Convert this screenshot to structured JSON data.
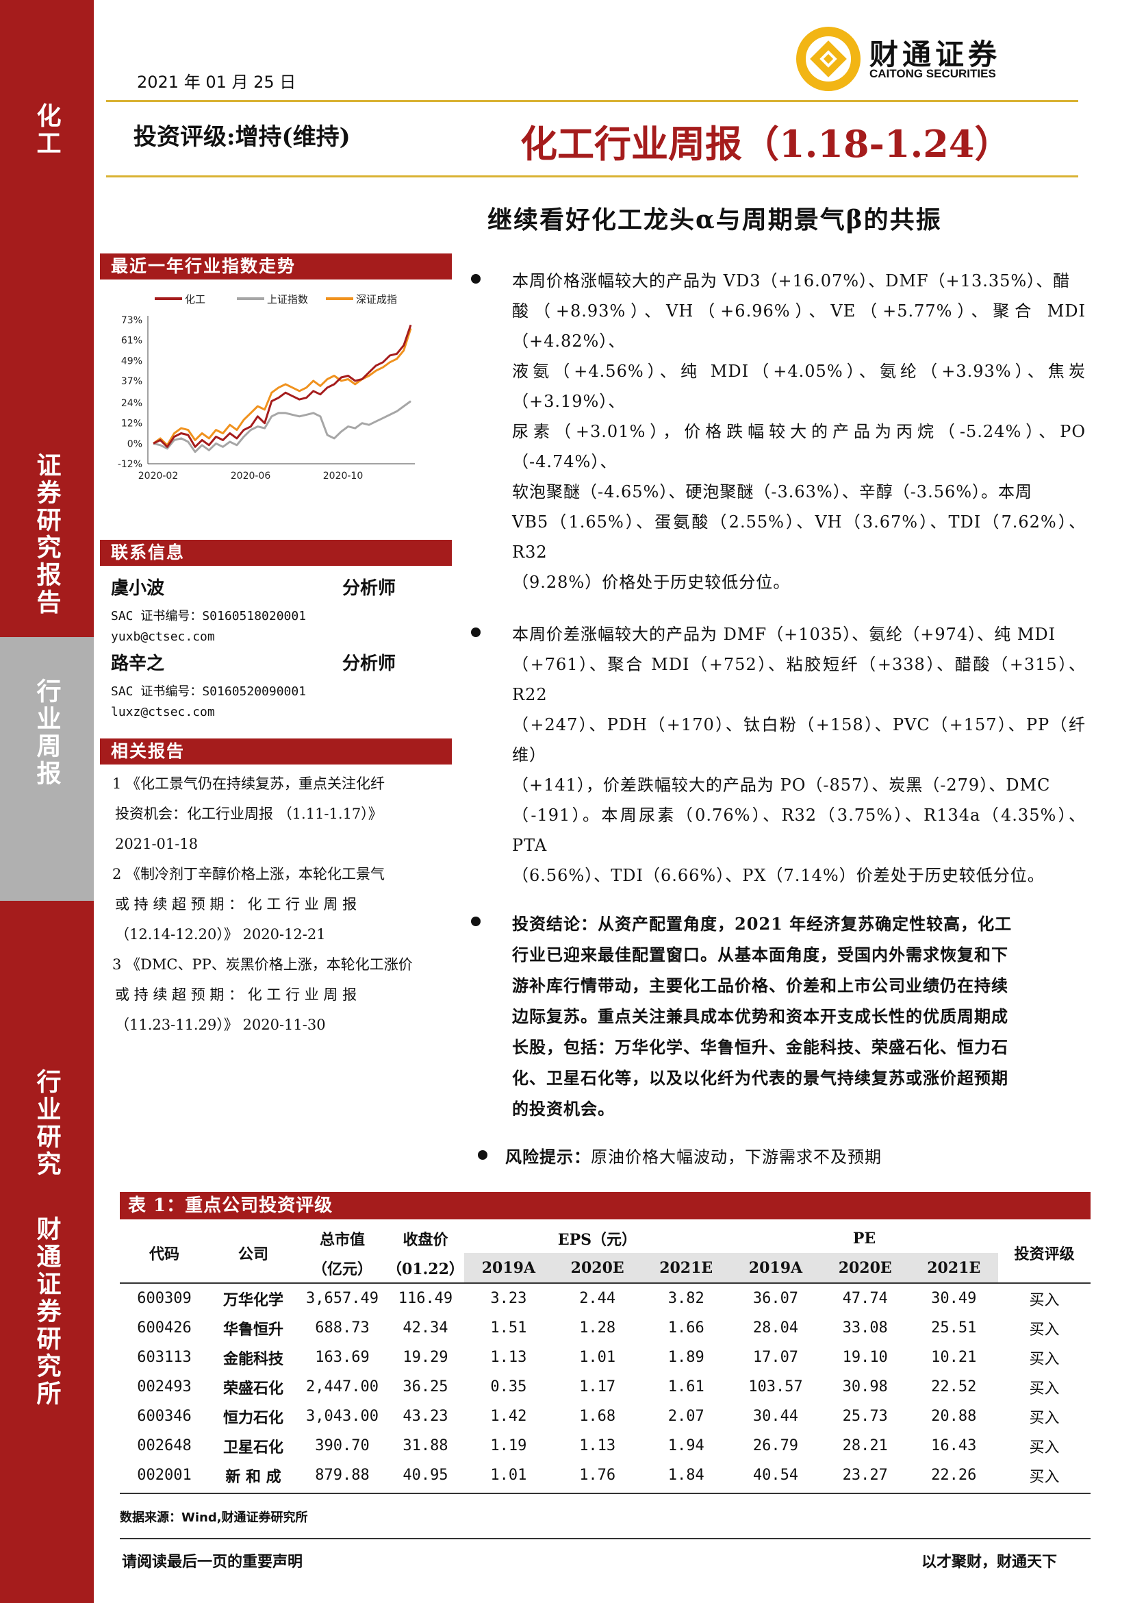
{
  "header": {
    "date": "2021 年 01 月 25 日",
    "logo_cn": "财通证券",
    "logo_en": "CAITONG SECURITIES",
    "rating": "投资评级:增持(维持)",
    "title": "化工行业周报（1.18-1.24）",
    "subtitle": "继续看好化工龙头α与周期景气β的共振"
  },
  "sidebar_band": {
    "top": "化工",
    "mid": "证券研究报告",
    "gray": "行业周报",
    "lower": "行业研究",
    "bottom": "财通证券研究所"
  },
  "chart_section": {
    "title": "最近一年行业指数走势"
  },
  "chart_data": {
    "type": "line",
    "legend": [
      "化工",
      "上证指数",
      "深证成指"
    ],
    "colors": [
      "#a51c1c",
      "#a6a6a6",
      "#f0921e"
    ],
    "yticks": [
      "73%",
      "61%",
      "49%",
      "37%",
      "24%",
      "12%",
      "0%",
      "-12%"
    ],
    "ylim": [
      -12,
      73
    ],
    "xticks": [
      "2020-02",
      "2020-06",
      "2020-10"
    ],
    "series": [
      {
        "name": "化工",
        "values": [
          0,
          2,
          -2,
          4,
          6,
          5,
          -2,
          2,
          -1,
          4,
          2,
          6,
          3,
          8,
          10,
          16,
          12,
          25,
          27,
          30,
          28,
          26,
          27,
          31,
          29,
          33,
          35,
          39,
          40,
          37,
          38,
          42,
          46,
          48,
          52,
          53,
          58,
          70
        ]
      },
      {
        "name": "上证指数",
        "values": [
          0,
          -1,
          -3,
          2,
          3,
          1,
          -5,
          -1,
          -4,
          0,
          -2,
          1,
          -1,
          4,
          8,
          10,
          9,
          16,
          18,
          18,
          17,
          16,
          17,
          18,
          16,
          5,
          3,
          7,
          10,
          9,
          12,
          11,
          13,
          15,
          17,
          19,
          22,
          25
        ]
      },
      {
        "name": "深证成指",
        "values": [
          0,
          3,
          -1,
          6,
          9,
          8,
          2,
          6,
          3,
          8,
          6,
          11,
          8,
          14,
          18,
          22,
          20,
          30,
          33,
          35,
          33,
          31,
          33,
          37,
          34,
          38,
          40,
          37,
          38,
          35,
          38,
          40,
          43,
          45,
          48,
          50,
          55,
          68
        ]
      }
    ]
  },
  "contact": {
    "title": "联系信息",
    "analysts": [
      {
        "name": "虞小波",
        "role": "分析师",
        "sac": "SAC 证书编号：S0160518020001",
        "email": "yuxb@ctsec.com"
      },
      {
        "name": "路辛之",
        "role": "分析师",
        "sac": "SAC 证书编号：S0160520090001",
        "email": "luxz@ctsec.com"
      }
    ]
  },
  "related": {
    "title": "相关报告",
    "items": [
      {
        "line1": "1 《化工景气仍在持续复苏，重点关注化纤",
        "line2": "投资机会：化工行业周报 （1.11-1.17）》",
        "line3": "2021-01-18"
      },
      {
        "line1": "2 《制冷剂丁辛醇价格上涨，本轮化工景气",
        "line2": "或 持 续 超 预 期 ： 化 工 行 业 周 报",
        "line3": "（12.14-12.20）》 2020-12-21"
      },
      {
        "line1": "3 《DMC、PP、炭黑价格上涨，本轮化工涨价",
        "line2": "或 持 续 超 预 期 ： 化 工 行 业 周 报",
        "line3": "（11.23-11.29）》 2020-11-30"
      }
    ]
  },
  "bullets": [
    {
      "lines": [
        "本周价格涨幅较大的产品为 VD3（+16.07%）、DMF（+13.35%）、醋",
        "酸（+8.93%）、VH（+6.96%）、VE（+5.77%）、聚合 MDI（+4.82%）、",
        "液氨（+4.56%）、纯 MDI（+4.05%）、氨纶（+3.93%）、焦炭（+3.19%）、",
        "尿素（+3.01%），价格跌幅较大的产品为丙烷（-5.24%）、PO（-4.74%）、",
        "软泡聚醚（-4.65%）、硬泡聚醚（-3.63%）、辛醇（-3.56%）。本周",
        "VB5（1.65%）、蛋氨酸（2.55%）、VH（3.67%）、TDI（7.62%）、R32",
        "（9.28%）价格处于历史较低分位。"
      ],
      "bold": false
    },
    {
      "lines": [
        "本周价差涨幅较大的产品为 DMF（+1035）、氨纶（+974）、纯 MDI",
        "（+761）、聚合 MDI（+752）、粘胶短纤（+338）、醋酸（+315）、R22",
        "（+247）、PDH（+170）、钛白粉（+158）、PVC（+157）、PP（纤维）",
        "（+141），价差跌幅较大的产品为 PO（-857）、炭黑（-279）、DMC",
        "（-191）。本周尿素（0.76%）、R32（3.75%）、R134a（4.35%）、PTA",
        "（6.56%）、TDI（6.66%）、PX（7.14%）价差处于历史较低分位。"
      ],
      "bold": false
    },
    {
      "lines": [
        "投资结论：从资产配置角度，2021 年经济复苏确定性较高，化工",
        "行业已迎来最佳配置窗口。从基本面角度，受国内外需求恢复和下",
        "游补库行情带动，主要化工品价格、价差和上市公司业绩仍在持续",
        "边际复苏。重点关注兼具成本优势和资本开支成长性的优质周期成",
        "长股，包括：万华化学、华鲁恒升、金能科技、荣盛石化、恒力石",
        "化、卫星石化等，以及以化纤为代表的景气持续复苏或涨价超预期",
        "的投资机会。"
      ],
      "bold": true
    },
    {
      "label": "风险提示：",
      "text": "原油价格大幅波动，下游需求不及预期"
    }
  ],
  "table": {
    "title": "表 1：重点公司投资评级",
    "headers": {
      "code": "代码",
      "company": "公司",
      "mcap": "总市值",
      "mcap_unit": "（亿元）",
      "close": "收盘价",
      "close_date": "（01.22）",
      "eps": "EPS（元）",
      "pe": "PE",
      "rating": "投资评级",
      "years": [
        "2019A",
        "2020E",
        "2021E",
        "2019A",
        "2020E",
        "2021E"
      ]
    },
    "rows": [
      [
        "600309",
        "万华化学",
        "3,657.49",
        "116.49",
        "3.23",
        "2.44",
        "3.82",
        "36.07",
        "47.74",
        "30.49",
        "买入"
      ],
      [
        "600426",
        "华鲁恒升",
        "688.73",
        "42.34",
        "1.51",
        "1.28",
        "1.66",
        "28.04",
        "33.08",
        "25.51",
        "买入"
      ],
      [
        "603113",
        "金能科技",
        "163.69",
        "19.29",
        "1.13",
        "1.01",
        "1.89",
        "17.07",
        "19.10",
        "10.21",
        "买入"
      ],
      [
        "002493",
        "荣盛石化",
        "2,447.00",
        "36.25",
        "0.35",
        "1.17",
        "1.61",
        "103.57",
        "30.98",
        "22.52",
        "买入"
      ],
      [
        "600346",
        "恒力石化",
        "3,043.00",
        "43.23",
        "1.42",
        "1.68",
        "2.07",
        "30.44",
        "25.73",
        "20.88",
        "买入"
      ],
      [
        "002648",
        "卫星石化",
        "390.70",
        "31.88",
        "1.19",
        "1.13",
        "1.94",
        "26.79",
        "28.21",
        "16.43",
        "买入"
      ],
      [
        "002001",
        "新 和 成",
        "879.88",
        "40.95",
        "1.01",
        "1.76",
        "1.84",
        "40.54",
        "23.27",
        "22.26",
        "买入"
      ]
    ],
    "source": "数据来源：Wind,财通证券研究所"
  },
  "footer": {
    "left": "请阅读最后一页的重要声明",
    "right": "以才聚财，财通天下"
  }
}
